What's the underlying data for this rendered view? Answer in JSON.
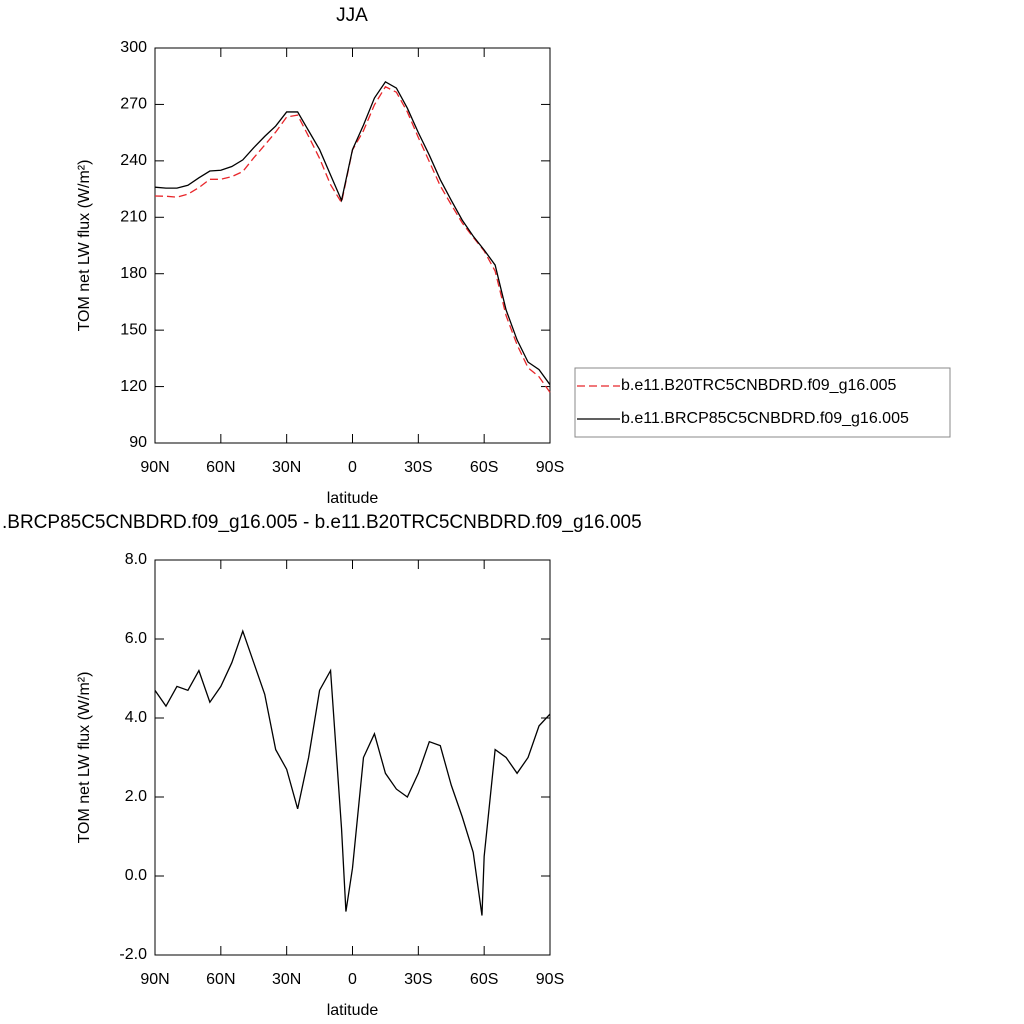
{
  "chart_data": [
    {
      "type": "line",
      "title": "JJA",
      "xlabel": "latitude",
      "ylabel": "TOM net LW flux (W/m²)",
      "x": [
        90,
        85,
        80,
        75,
        70,
        65,
        60,
        55,
        50,
        45,
        40,
        35,
        30,
        25,
        20,
        15,
        10,
        5,
        0,
        -5,
        -10,
        -15,
        -20,
        -25,
        -30,
        -35,
        -40,
        -45,
        -50,
        -55,
        -60,
        -65,
        -70,
        -75,
        -80,
        -85,
        -90
      ],
      "series": [
        {
          "name": "b.e11.B20TRC5CNBDRD.f09_g16.005",
          "color": "#e8262a",
          "dash": true,
          "values": [
            221.3,
            221.2,
            220.7,
            222.3,
            225.8,
            230.2,
            230.2,
            231.6,
            234.3,
            241.6,
            248.4,
            255.3,
            263.3,
            264.3,
            253,
            241.3,
            227.3,
            217.8,
            245.8,
            256,
            269.8,
            279.4,
            276.5,
            266,
            252.4,
            239.6,
            226.7,
            216.7,
            207,
            199.4,
            192.1,
            181.4,
            157.7,
            142.2,
            130,
            125.2,
            116.9
          ]
        },
        {
          "name": "b.e11.BRCP85C5CNBDRD.f09_g16.005",
          "color": "#000000",
          "dash": false,
          "values": [
            226,
            225.5,
            225.5,
            227,
            231,
            234.6,
            235,
            237,
            240.5,
            247,
            253,
            258.5,
            266,
            266,
            256,
            246,
            232.5,
            219,
            246,
            259,
            273.4,
            282,
            278.7,
            268,
            255,
            243,
            230,
            219,
            208.5,
            200,
            192.6,
            184.6,
            160.7,
            144.8,
            133,
            129,
            121
          ]
        }
      ],
      "xlim": [
        90,
        -90
      ],
      "xticks": [
        {
          "value": 90,
          "label": "90N"
        },
        {
          "value": 60,
          "label": "60N"
        },
        {
          "value": 30,
          "label": "30N"
        },
        0,
        {
          "value": -30,
          "label": "30S"
        },
        {
          "value": -60,
          "label": "60S"
        },
        {
          "value": -90,
          "label": "90S"
        }
      ],
      "ylim": [
        90,
        300
      ],
      "yticks": [
        90,
        120,
        150,
        180,
        210,
        240,
        270,
        300
      ],
      "legend": "right"
    },
    {
      "type": "line",
      "title": ".BRCP85C5CNBDRD.f09_g16.005 - b.e11.B20TRC5CNBDRD.f09_g16.005",
      "xlabel": "latitude",
      "ylabel": "TOM net LW flux (W/m²)",
      "x": [
        90,
        85,
        80,
        75,
        70,
        65,
        60,
        55,
        50,
        45,
        40,
        35,
        30,
        25,
        20,
        15,
        10,
        5,
        3,
        0,
        -5,
        -10,
        -15,
        -20,
        -25,
        -30,
        -35,
        -40,
        -45,
        -50,
        -55,
        -59,
        -60,
        -65,
        -70,
        -75,
        -80,
        -85,
        -90
      ],
      "values": [
        4.7,
        4.3,
        4.8,
        4.7,
        5.2,
        4.4,
        4.8,
        5.4,
        6.2,
        5.4,
        4.6,
        3.2,
        2.7,
        1.7,
        3.0,
        4.7,
        5.2,
        1.2,
        -0.9,
        0.2,
        3.0,
        3.6,
        2.6,
        2.2,
        2.0,
        2.6,
        3.4,
        3.3,
        2.3,
        1.5,
        0.6,
        -1.0,
        0.5,
        3.2,
        3.0,
        2.6,
        3.0,
        3.8,
        4.1
      ],
      "color": "#000000",
      "xlim": [
        90,
        -90
      ],
      "xticks": [
        {
          "value": 90,
          "label": "90N"
        },
        {
          "value": 60,
          "label": "60N"
        },
        {
          "value": 30,
          "label": "30N"
        },
        0,
        {
          "value": -30,
          "label": "30S"
        },
        {
          "value": -60,
          "label": "60S"
        },
        {
          "value": -90,
          "label": "90S"
        }
      ],
      "ylim": [
        -2,
        8
      ],
      "yticks": [
        {
          "value": -2,
          "label": "-2.0"
        },
        {
          "value": 0,
          "label": "0.0"
        },
        {
          "value": 2,
          "label": "2.0"
        },
        {
          "value": 4,
          "label": "4.0"
        },
        {
          "value": 6,
          "label": "6.0"
        },
        {
          "value": 8,
          "label": "8.0"
        }
      ]
    }
  ]
}
